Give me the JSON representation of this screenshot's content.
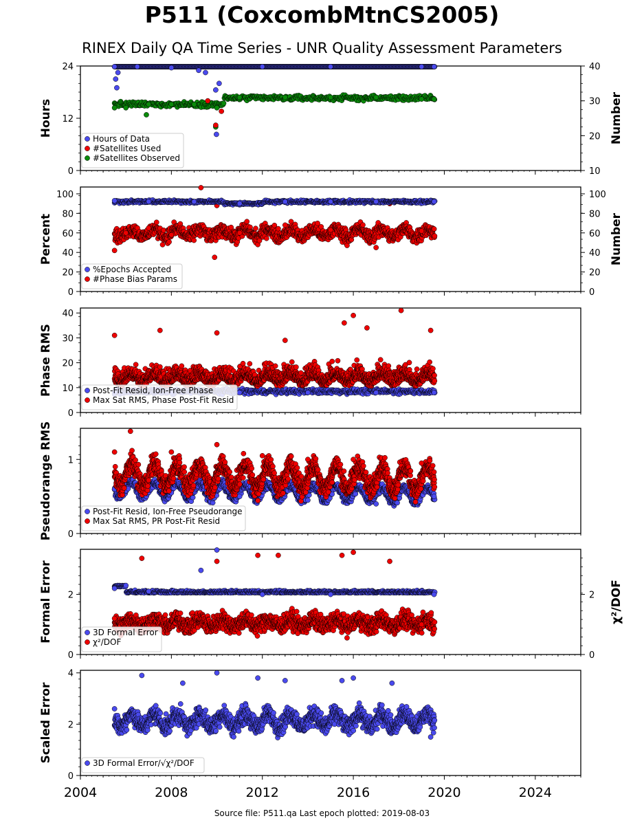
{
  "title": "P511 (CoxcombMtnCS2005)",
  "subtitle": "RINEX Daily QA Time Series - UNR Quality Assessment Parameters",
  "footer": "Source file: P511.qa Last epoch plotted: 2019-08-03",
  "colors": {
    "blue": "#4a4aee",
    "red": "#ee0000",
    "green": "#0a8a0a"
  },
  "chart_data": [
    {
      "type": "scatter",
      "ylabel": "Hours",
      "y2label": "Number",
      "ylim": [
        0,
        24
      ],
      "yticks": [
        "0",
        "12",
        "24"
      ],
      "y2lim": [
        10,
        40
      ],
      "y2ticks": [
        "10",
        "20",
        "30",
        "40"
      ],
      "legend_position": "lower-left",
      "series": [
        {
          "name": "Hours of Data",
          "color": "blue",
          "axis": "left",
          "points": [
            [
              2005.5,
              24
            ],
            [
              2005.55,
              21
            ],
            [
              2005.6,
              19
            ],
            [
              2005.65,
              22.5
            ],
            [
              2006.5,
              24
            ],
            [
              2008,
              23.6
            ],
            [
              2009.2,
              23
            ],
            [
              2009.5,
              22.5
            ],
            [
              2009.95,
              18.5
            ],
            [
              2009.98,
              8.3
            ],
            [
              2010.1,
              20
            ],
            [
              2012,
              24
            ],
            [
              2015,
              24
            ],
            [
              2019,
              24
            ],
            [
              2019.55,
              24
            ]
          ]
        },
        {
          "name": "#Satellites Used",
          "color": "red",
          "axis": "right",
          "points": [
            [
              2009.6,
              30
            ],
            [
              2009.95,
              23
            ],
            [
              2010.2,
              27
            ]
          ]
        },
        {
          "name": "#Satellites Observed",
          "color": "green",
          "axis": "right",
          "points": [
            [
              2005.5,
              28
            ],
            [
              2006,
              28
            ],
            [
              2006.9,
              26
            ],
            [
              2007,
              29
            ],
            [
              2008,
              29
            ],
            [
              2009,
              29
            ],
            [
              2009.95,
              22.5
            ],
            [
              2010,
              28
            ],
            [
              2011,
              31
            ],
            [
              2013,
              31
            ],
            [
              2015,
              31
            ],
            [
              2017,
              31
            ],
            [
              2019,
              30.5
            ],
            [
              2019.55,
              30.5
            ]
          ]
        }
      ]
    },
    {
      "type": "scatter",
      "ylabel": "Percent",
      "y2label": "Number",
      "ylim": [
        0,
        107
      ],
      "yticks": [
        "0",
        "20",
        "40",
        "60",
        "80",
        "100"
      ],
      "y2lim": [
        0,
        107
      ],
      "y2ticks": [
        "0",
        "20",
        "40",
        "60",
        "80",
        "100"
      ],
      "legend_position": "lower-left",
      "series": [
        {
          "name": "%Epochs Accepted",
          "color": "blue",
          "axis": "left",
          "points": [
            [
              2005.5,
              93
            ],
            [
              2007,
              92
            ],
            [
              2009,
              92
            ],
            [
              2011,
              90
            ],
            [
              2013,
              92
            ],
            [
              2015,
              92
            ],
            [
              2017,
              92
            ],
            [
              2019.55,
              92
            ]
          ]
        },
        {
          "name": "#Phase Bias Params",
          "color": "red",
          "axis": "right",
          "points": [
            [
              2005.5,
              42
            ],
            [
              2006,
              60
            ],
            [
              2007,
              65
            ],
            [
              2008,
              58
            ],
            [
              2009.3,
              107
            ],
            [
              2009.9,
              35
            ],
            [
              2010,
              88
            ],
            [
              2011,
              60
            ],
            [
              2013,
              68
            ],
            [
              2015,
              63
            ],
            [
              2017,
              45
            ],
            [
              2017.6,
              90
            ],
            [
              2019,
              62
            ]
          ]
        }
      ]
    },
    {
      "type": "scatter",
      "ylabel": "Phase RMS",
      "ylim": [
        0,
        42
      ],
      "yticks": [
        "0",
        "10",
        "20",
        "30",
        "40"
      ],
      "legend_position": "lower-left",
      "series": [
        {
          "name": "Post-Fit Resid, Ion-Free Phase",
          "color": "blue",
          "points": [
            [
              2005.5,
              8
            ],
            [
              2008,
              8
            ],
            [
              2011,
              8
            ],
            [
              2014,
              8
            ],
            [
              2017,
              8
            ],
            [
              2019.55,
              8
            ]
          ]
        },
        {
          "name": "Max Sat RMS, Phase Post-Fit Resid",
          "color": "red",
          "points": [
            [
              2005.5,
              31
            ],
            [
              2007.5,
              33
            ],
            [
              2010,
              32
            ],
            [
              2013,
              29
            ],
            [
              2015.6,
              36
            ],
            [
              2016,
              39
            ],
            [
              2016.6,
              34
            ],
            [
              2018.1,
              41
            ],
            [
              2019.4,
              33
            ]
          ]
        }
      ]
    },
    {
      "type": "scatter",
      "ylabel": "Pseudorange RMS",
      "ylim": [
        0,
        1.42
      ],
      "yticks": [
        "0",
        "1"
      ],
      "legend_position": "lower-left",
      "series": [
        {
          "name": "Post-Fit Resid, Ion-Free Pseudorange",
          "color": "blue",
          "points": [
            [
              2005.5,
              0.6
            ],
            [
              2008,
              0.55
            ],
            [
              2011,
              0.5
            ],
            [
              2014,
              0.45
            ],
            [
              2017,
              0.4
            ],
            [
              2019.55,
              0.5
            ]
          ]
        },
        {
          "name": "Max Sat RMS, PR Post-Fit Resid",
          "color": "red",
          "points": [
            [
              2005.5,
              1.1
            ],
            [
              2006.2,
              1.38
            ],
            [
              2008,
              1.1
            ],
            [
              2010,
              1.2
            ],
            [
              2012,
              1.05
            ],
            [
              2014,
              1.0
            ],
            [
              2016,
              1.0
            ],
            [
              2019,
              0.95
            ]
          ]
        }
      ]
    },
    {
      "type": "scatter",
      "ylabel": "Formal Error",
      "y2label": "χ²/DOF",
      "ylim": [
        0,
        3.5
      ],
      "yticks": [
        "0",
        "2"
      ],
      "y2lim": [
        0,
        3.5
      ],
      "y2ticks": [
        "0",
        "2"
      ],
      "legend_position": "lower-left",
      "series": [
        {
          "name": "3D Formal Error",
          "color": "blue",
          "axis": "left",
          "points": [
            [
              2005.5,
              2.2
            ],
            [
              2007,
              2.1
            ],
            [
              2009.3,
              2.8
            ],
            [
              2010,
              3.5
            ],
            [
              2012,
              2.0
            ],
            [
              2015,
              2.0
            ],
            [
              2019.55,
              2.0
            ]
          ]
        },
        {
          "name": "χ²/DOF",
          "color": "red",
          "axis": "right",
          "points": [
            [
              2005.5,
              1.2
            ],
            [
              2006.7,
              3.2
            ],
            [
              2010,
              3.1
            ],
            [
              2011.8,
              3.3
            ],
            [
              2012.7,
              3.3
            ],
            [
              2015.5,
              3.3
            ],
            [
              2016,
              3.4
            ],
            [
              2017.6,
              3.1
            ],
            [
              2019,
              1.0
            ]
          ]
        }
      ]
    },
    {
      "type": "scatter",
      "ylabel": "Scaled Error",
      "ylim": [
        0,
        4.1
      ],
      "yticks": [
        "0",
        "2",
        "4"
      ],
      "legend_position": "lower-left",
      "series": [
        {
          "name": "3D Formal Error/√χ²/DOF",
          "color": "blue",
          "points": [
            [
              2005.5,
              2.6
            ],
            [
              2006.7,
              3.9
            ],
            [
              2008.5,
              3.6
            ],
            [
              2010,
              4.0
            ],
            [
              2011.8,
              3.8
            ],
            [
              2013,
              3.7
            ],
            [
              2015.5,
              3.7
            ],
            [
              2016,
              3.8
            ],
            [
              2017.7,
              3.6
            ],
            [
              2019.4,
              1.5
            ]
          ]
        }
      ]
    }
  ],
  "x_axis": {
    "xlim": [
      2004,
      2026
    ],
    "ticks": [
      "2004",
      "2008",
      "2012",
      "2016",
      "2020",
      "2024"
    ]
  }
}
